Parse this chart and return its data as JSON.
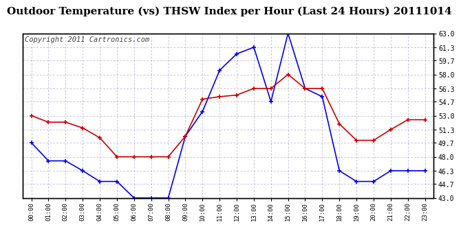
{
  "title": "Outdoor Temperature (vs) THSW Index per Hour (Last 24 Hours) 20111014",
  "copyright": "Copyright 2011 Cartronics.com",
  "hours": [
    0,
    1,
    2,
    3,
    4,
    5,
    6,
    7,
    8,
    9,
    10,
    11,
    12,
    13,
    14,
    15,
    16,
    17,
    18,
    19,
    20,
    21,
    22,
    23
  ],
  "hour_labels": [
    "00:00",
    "01:00",
    "02:00",
    "03:00",
    "04:00",
    "05:00",
    "06:00",
    "07:00",
    "08:00",
    "09:00",
    "10:00",
    "11:00",
    "12:00",
    "13:00",
    "14:00",
    "15:00",
    "16:00",
    "17:00",
    "18:00",
    "19:00",
    "20:00",
    "21:00",
    "22:00",
    "23:00"
  ],
  "temp_blue": [
    49.7,
    47.5,
    47.5,
    46.3,
    45.0,
    45.0,
    43.0,
    43.0,
    43.0,
    50.5,
    53.5,
    58.5,
    60.5,
    61.3,
    54.7,
    63.0,
    56.3,
    55.3,
    46.3,
    45.0,
    45.0,
    46.3,
    46.3,
    46.3
  ],
  "temp_red": [
    53.0,
    52.2,
    52.2,
    51.5,
    50.3,
    48.0,
    48.0,
    48.0,
    48.0,
    50.5,
    55.0,
    55.3,
    55.5,
    56.3,
    56.3,
    58.0,
    56.3,
    56.3,
    52.0,
    50.0,
    50.0,
    51.3,
    52.5,
    52.5
  ],
  "ylim_min": 43.0,
  "ylim_max": 63.0,
  "yticks": [
    43.0,
    44.7,
    46.3,
    48.0,
    49.7,
    51.3,
    53.0,
    54.7,
    56.3,
    58.0,
    59.7,
    61.3,
    63.0
  ],
  "blue_color": "#0000EE",
  "red_color": "#CC0000",
  "bg_color": "#FFFFFF",
  "grid_color": "#AAAACC",
  "title_fontsize": 11,
  "copyright_fontsize": 7.5
}
